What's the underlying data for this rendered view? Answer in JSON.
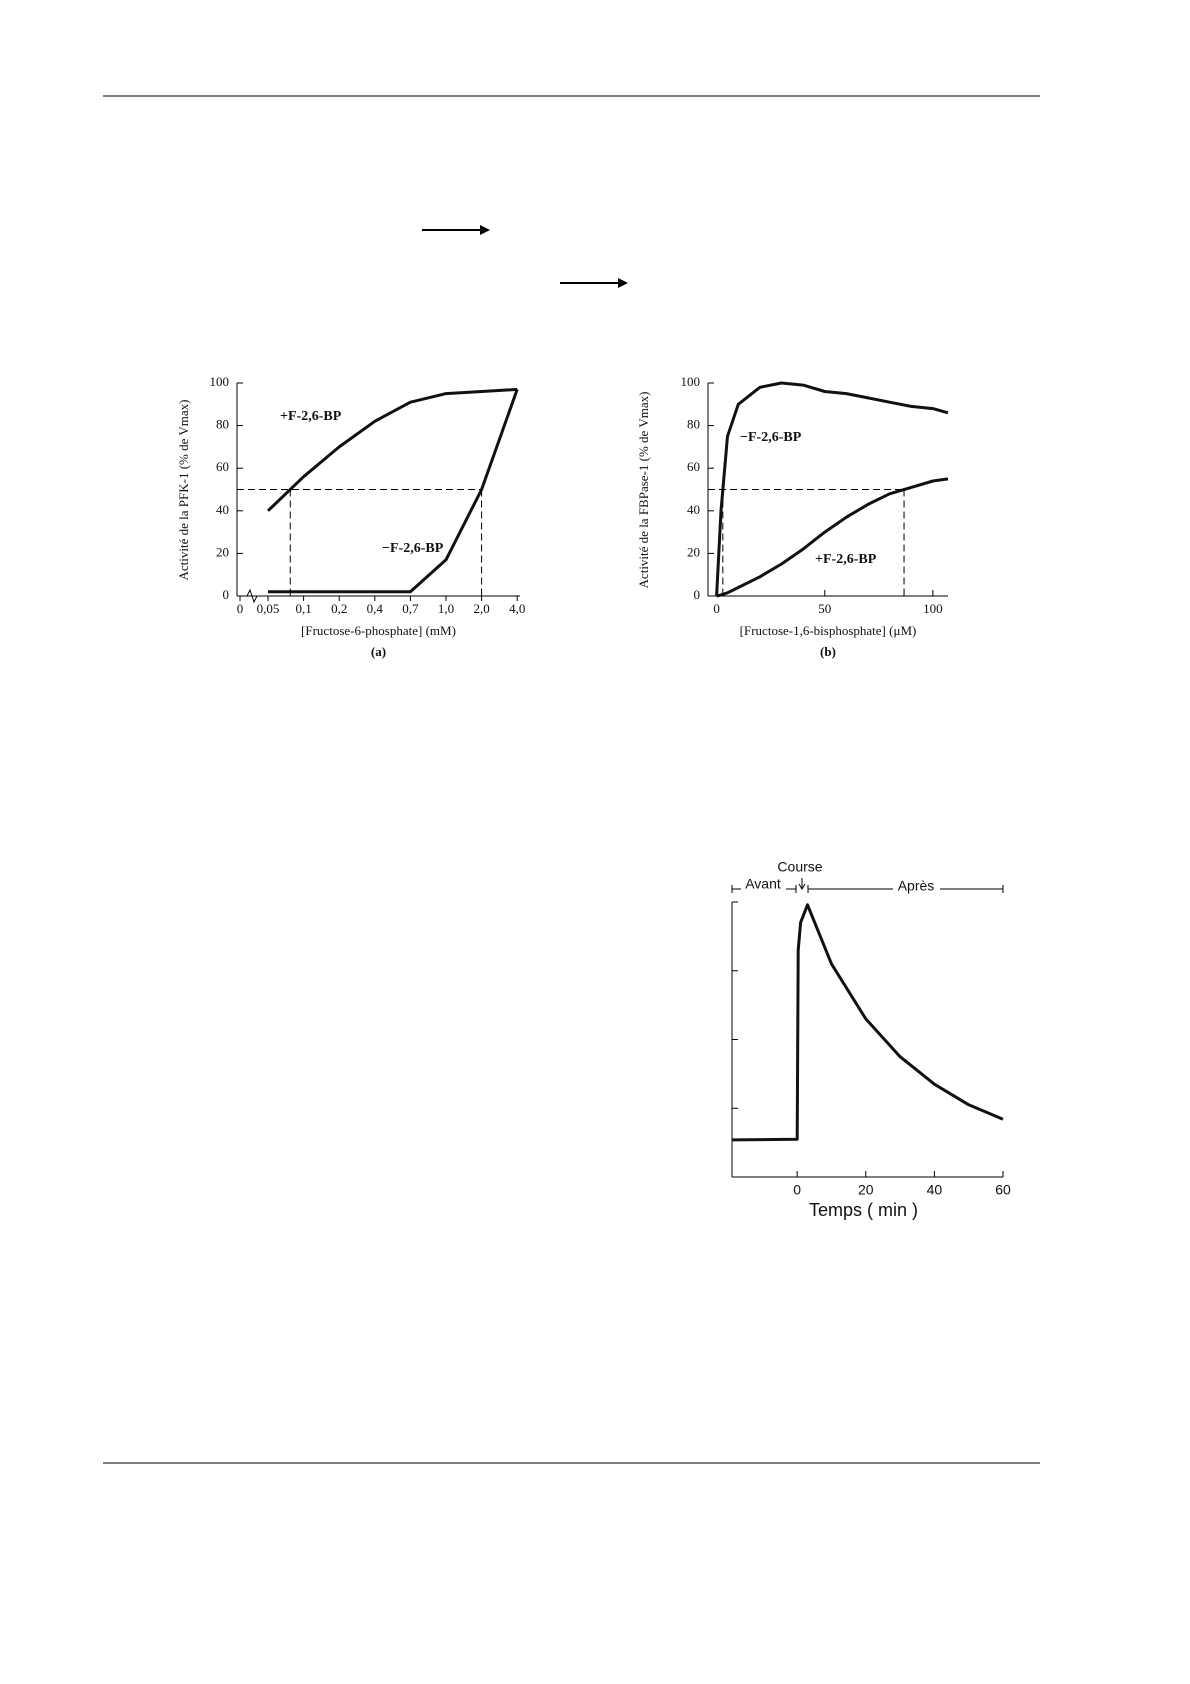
{
  "chart_data": [
    {
      "type": "line",
      "caption": "(a)",
      "x_label": "[Fructose-6-phosphate] (mM)",
      "y_label": "Activité de la PFK-1 (% de Vmax)",
      "categories": [
        "0",
        "0,05",
        "0,1",
        "0,2",
        "0,4",
        "0,7",
        "1,0",
        "2,0",
        "4,0"
      ],
      "series": [
        {
          "name": "+F-2,6-BP",
          "color": "#111111",
          "values": [
            null,
            40,
            56,
            70,
            82,
            91,
            95,
            96,
            97
          ]
        },
        {
          "name": "−F-2,6-BP",
          "color": "#111111",
          "values": [
            null,
            2,
            2,
            2,
            2,
            2,
            17,
            50,
            97
          ]
        }
      ],
      "ylim": [
        0,
        100
      ],
      "yticks": [
        0,
        20,
        40,
        60,
        80,
        100
      ],
      "hline": 50
    },
    {
      "type": "line",
      "caption": "(b)",
      "x_label": "[Fructose-1,6-bisphosphate] (μM)",
      "y_label": "Activité de la FBPase-1 (% de Vmax)",
      "x": [
        0,
        2,
        5,
        10,
        20,
        30,
        40,
        50,
        60,
        70,
        80,
        90,
        100,
        107
      ],
      "series": [
        {
          "name": "−F-2,6-BP",
          "color": "#111111",
          "values": [
            0,
            40,
            75,
            90,
            98,
            100,
            99,
            96,
            95,
            93,
            91,
            89,
            88,
            86
          ]
        },
        {
          "name": "+F-2,6-BP",
          "color": "#111111",
          "values": [
            0,
            0.5,
            1.5,
            4,
            9,
            15,
            22,
            30,
            37,
            43,
            48,
            51,
            54,
            55
          ]
        }
      ],
      "xlim": [
        -4,
        107
      ],
      "xticks": [
        0,
        50,
        100
      ],
      "ylim": [
        0,
        100
      ],
      "yticks": [
        0,
        20,
        40,
        60,
        80,
        100
      ],
      "hline": 50
    },
    {
      "type": "line",
      "x_label": "Temps  ( min )",
      "annotations": [
        "Course",
        "Avant",
        "Après"
      ],
      "x": [
        -19,
        0,
        0.3,
        1,
        3,
        10,
        20,
        30,
        40,
        50,
        60
      ],
      "series": [
        {
          "color": "#111111",
          "values": [
            0.54,
            0.55,
            3.3,
            3.7,
            3.96,
            3.1,
            2.3,
            1.75,
            1.35,
            1.05,
            0.84
          ]
        }
      ],
      "xlim": [
        -19,
        60
      ],
      "xticks": [
        0,
        20,
        40,
        60
      ],
      "ylim": [
        0,
        4
      ],
      "yticks": [
        1,
        2,
        3,
        4
      ],
      "ytick_labels": false
    }
  ]
}
